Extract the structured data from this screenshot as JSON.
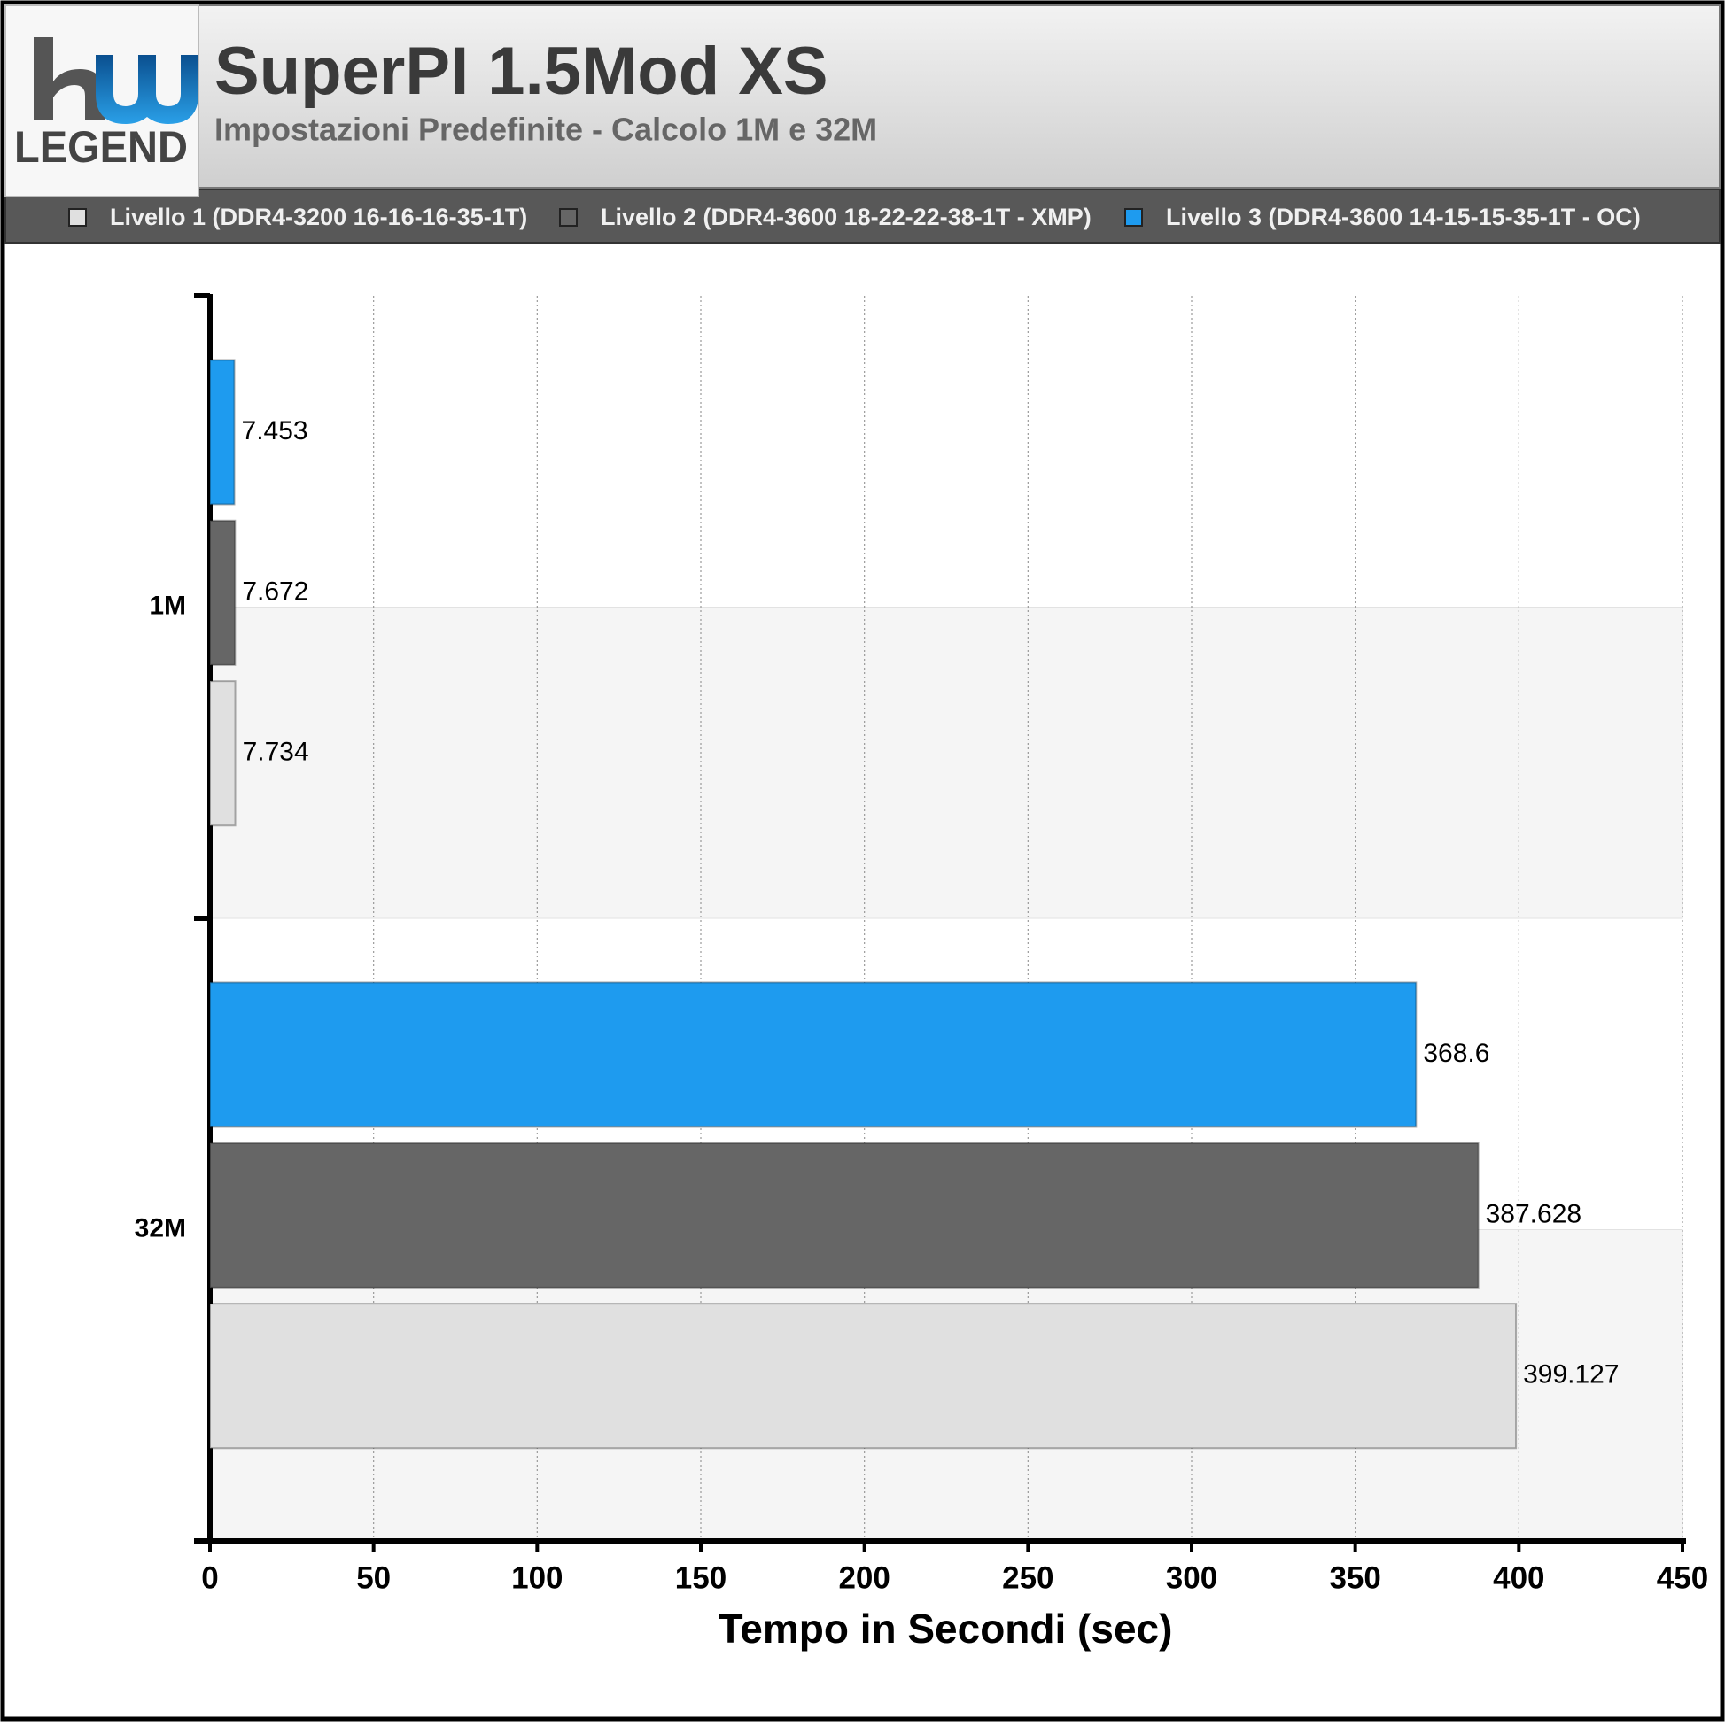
{
  "logo": "LEGEND",
  "chart_data": {
    "type": "barh",
    "title": "SuperPI 1.5Mod XS",
    "subtitle": "Impostazioni Predefinite - Calcolo 1M e 32M",
    "x_label": "Tempo in Secondi (sec)",
    "categories": [
      "1M",
      "32M"
    ],
    "series": [
      {
        "name": "Livello 1 (DDR4-3200 16-16-16-35-1T)",
        "color": "#e0e0e0",
        "values": [
          7.734,
          399.127
        ]
      },
      {
        "name": "Livello 2 (DDR4-3600 18-22-22-38-1T - XMP)",
        "color": "#666666",
        "values": [
          7.672,
          387.628
        ]
      },
      {
        "name": "Livello 3 (DDR4-3600 14-15-15-35-1T - OC)",
        "color": "#1e9bef",
        "values": [
          7.453,
          368.6
        ]
      }
    ],
    "xlim": [
      0,
      450
    ],
    "xticks": [
      0,
      50,
      100,
      150,
      200,
      250,
      300,
      350,
      400,
      450
    ],
    "grid": true,
    "legend": "top"
  }
}
